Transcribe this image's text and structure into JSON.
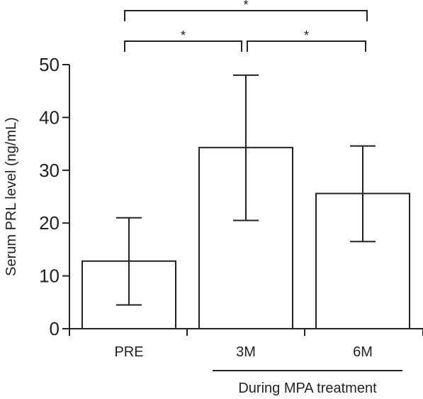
{
  "chart_data": {
    "type": "bar",
    "categories": [
      "PRE",
      "3M",
      "6M"
    ],
    "values": [
      12.8,
      34.3,
      25.6
    ],
    "error_low": [
      4.5,
      20.5,
      16.5
    ],
    "error_high": [
      21.0,
      48.0,
      34.6
    ],
    "ylabel": "Serum PRL level (ng/mL)",
    "ylim": [
      0,
      50
    ],
    "yticks": [
      0,
      10,
      20,
      30,
      40,
      50
    ],
    "group_label": "During MPA treatment",
    "group_categories": [
      "3M",
      "6M"
    ],
    "significance": [
      {
        "from": "PRE",
        "to": "3M",
        "label": "*"
      },
      {
        "from": "3M",
        "to": "6M",
        "label": "*"
      },
      {
        "from": "PRE",
        "to": "6M",
        "label": "*"
      }
    ],
    "grid": false,
    "colors": {
      "bar_fill": "#ffffff",
      "stroke": "#222222"
    }
  }
}
